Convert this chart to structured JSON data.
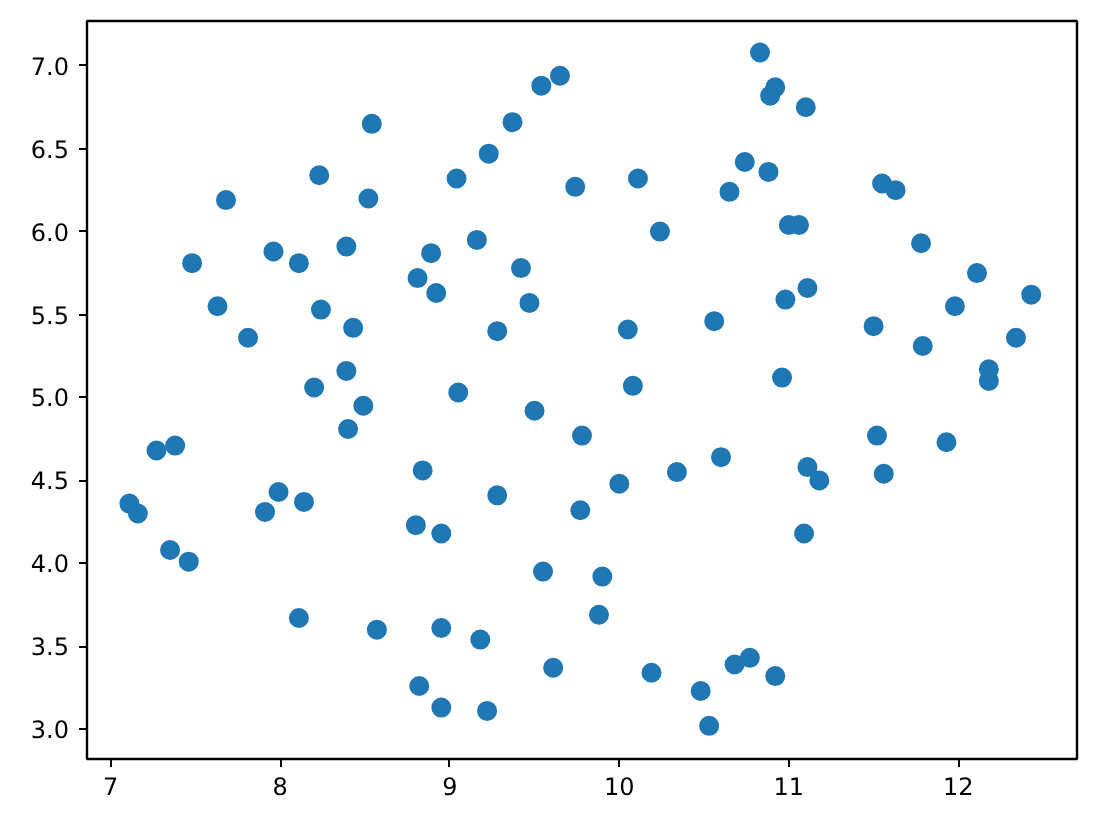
{
  "chart_data": {
    "type": "scatter",
    "color": "#1f77b4",
    "marker": "circle",
    "grid": false,
    "x": [
      9.65,
      9.54,
      8.54,
      9.37,
      9.23,
      8.23,
      9.04,
      7.68,
      8.52,
      9.74,
      7.48,
      7.96,
      8.11,
      8.39,
      8.89,
      8.81,
      8.92,
      9.16,
      9.42,
      9.47,
      7.63,
      8.24,
      7.81,
      8.43,
      9.28,
      8.39,
      8.2,
      9.05,
      8.49,
      9.5,
      9.78,
      8.4,
      7.27,
      7.38,
      8.84,
      7.11,
      7.16,
      7.99,
      7.91,
      8.14,
      9.28,
      9.77,
      8.8,
      8.95,
      7.35,
      7.46,
      9.55,
      8.11,
      8.57,
      8.95,
      9.18,
      9.61,
      8.82,
      8.95,
      9.22,
      10.83,
      10.92,
      10.89,
      11.1,
      10.74,
      10.88,
      10.65,
      10.11,
      11.55,
      11.63,
      10.24,
      11.0,
      11.06,
      11.78,
      12.11,
      12.43,
      11.11,
      10.98,
      11.98,
      10.56,
      10.05,
      11.5,
      11.79,
      12.34,
      12.18,
      12.18,
      10.08,
      10.96,
      11.52,
      11.93,
      10.6,
      10.34,
      10.0,
      11.11,
      11.18,
      11.56,
      11.09,
      9.9,
      9.88,
      10.19,
      10.68,
      10.77,
      10.92,
      10.48,
      10.53
    ],
    "values": [
      6.94,
      6.88,
      6.65,
      6.66,
      6.47,
      6.34,
      6.32,
      6.19,
      6.2,
      6.27,
      5.81,
      5.88,
      5.81,
      5.91,
      5.87,
      5.72,
      5.63,
      5.95,
      5.78,
      5.57,
      5.55,
      5.53,
      5.36,
      5.42,
      5.4,
      5.16,
      5.06,
      5.03,
      4.95,
      4.92,
      4.77,
      4.81,
      4.68,
      4.71,
      4.56,
      4.36,
      4.3,
      4.43,
      4.31,
      4.37,
      4.41,
      4.32,
      4.23,
      4.18,
      4.08,
      4.01,
      3.95,
      3.67,
      3.6,
      3.61,
      3.54,
      3.37,
      3.26,
      3.13,
      3.11,
      7.08,
      6.87,
      6.82,
      6.75,
      6.42,
      6.36,
      6.24,
      6.32,
      6.29,
      6.25,
      6.0,
      6.04,
      6.04,
      5.93,
      5.75,
      5.62,
      5.66,
      5.59,
      5.55,
      5.46,
      5.41,
      5.43,
      5.31,
      5.36,
      5.17,
      5.1,
      5.07,
      5.12,
      4.77,
      4.73,
      4.64,
      4.55,
      4.48,
      4.58,
      4.5,
      4.54,
      4.18,
      3.92,
      3.69,
      3.34,
      3.39,
      3.43,
      3.32,
      3.23,
      3.02
    ],
    "xlim": [
      6.86,
      12.7
    ],
    "ylim": [
      2.82,
      7.27
    ],
    "xticks": [
      7,
      8,
      9,
      10,
      11,
      12
    ],
    "yticks": [
      {
        "value": 3,
        "label": "3.0"
      },
      {
        "value": 3.5,
        "label": "3.5"
      },
      {
        "value": 4,
        "label": "4.0"
      },
      {
        "value": 4.5,
        "label": "4.5"
      },
      {
        "value": 5,
        "label": "5.0"
      },
      {
        "value": 5.5,
        "label": "5.5"
      },
      {
        "value": 6,
        "label": "6.0"
      },
      {
        "value": 6.5,
        "label": "6.5"
      },
      {
        "value": 7,
        "label": "7.0"
      }
    ]
  }
}
